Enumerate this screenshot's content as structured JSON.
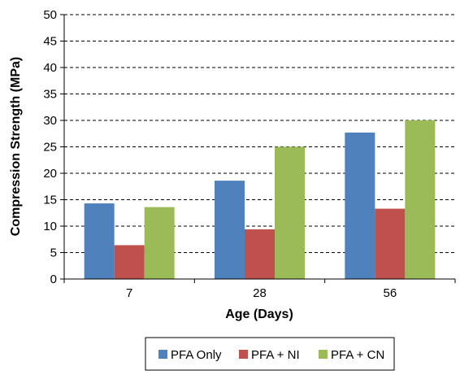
{
  "chart_data": {
    "type": "bar",
    "title": "",
    "xlabel": "Age (Days)",
    "ylabel": "Compression Strength (MPa)",
    "categories": [
      "7",
      "28",
      "56"
    ],
    "ylim": [
      0,
      50
    ],
    "yticks": [
      "0",
      "5",
      "10",
      "15",
      "20",
      "25",
      "30",
      "35",
      "40",
      "45",
      "50"
    ],
    "grid": "horizontal dashed",
    "legend_position": "bottom",
    "series": [
      {
        "name": "PFA Only",
        "color": "#4f81bd",
        "values": [
          14.3,
          18.6,
          27.7
        ]
      },
      {
        "name": "PFA + NI",
        "color": "#c0504d",
        "values": [
          6.4,
          9.4,
          13.3
        ]
      },
      {
        "name": "PFA + CN",
        "color": "#9bbb59",
        "values": [
          13.6,
          25.0,
          30.0
        ]
      }
    ]
  }
}
